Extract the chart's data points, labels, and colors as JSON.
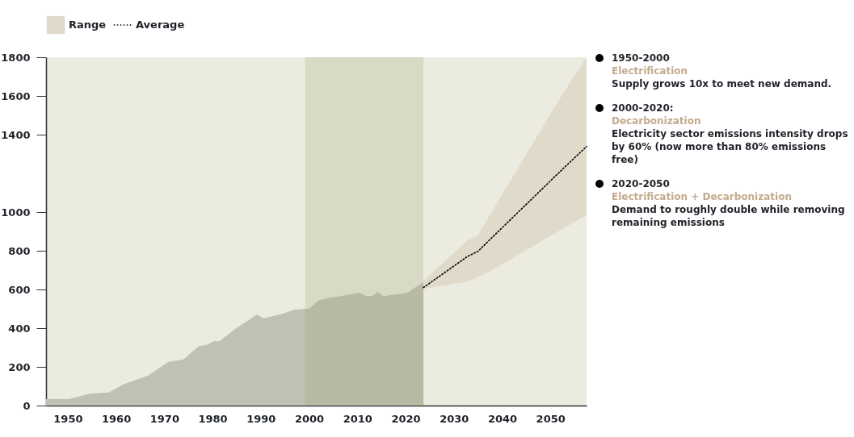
{
  "chart_data": {
    "type": "area",
    "xlim": [
      1945.5,
      2057.5
    ],
    "xticks": [
      1950,
      1960,
      1970,
      1980,
      1990,
      2000,
      2010,
      2020,
      2030,
      2040,
      2050
    ],
    "ylim": [
      0,
      1800
    ],
    "yticks": [
      0,
      200,
      400,
      600,
      800,
      1000,
      1400,
      1600,
      1800
    ],
    "legend": "top left",
    "line_style": "dotted",
    "series": [
      {
        "type": "area",
        "color": "#c0c0b3",
        "x": [
          1945.5,
          1950.2,
          1954.6,
          1958.5,
          1961.6,
          1966.6,
          1970.8,
          1973.9,
          1977.2,
          1978.6,
          1980.3,
          1981.4,
          1985,
          1989.2,
          1990.6,
          1995,
          1997,
          2000,
          2002,
          2004.5,
          2010.4,
          2012,
          2013.2,
          2014.2,
          2015.4,
          2017.9,
          2020.1,
          2021.8,
          2023.7
        ],
        "values": [
          33,
          33,
          61,
          68,
          110,
          154,
          225,
          238,
          307,
          312,
          332,
          332,
          401,
          471,
          450,
          478,
          496,
          501,
          544,
          557,
          582,
          565,
          568,
          589,
          565,
          575,
          579,
          607,
          638
        ]
      },
      {
        "name": "Average",
        "type": "line",
        "color": "#000000",
        "x": [
          2023.7,
          2032.8,
          2035,
          2037.4,
          2052.2,
          2057.5
        ],
        "values": [
          610,
          770,
          797,
          856,
          1214,
          1339
        ],
        "lower": [
          603,
          640,
          666,
          693,
          908,
          985
        ],
        "upper": [
          645,
          853,
          880,
          983,
          1596,
          1800
        ]
      }
    ],
    "bands": [
      {
        "axis": "x",
        "from": 1999.2,
        "to": 2023.7,
        "color": "#9fa27a"
      }
    ],
    "annotations": [
      "Range",
      "1950-2000\nElectrification\nSupply grows 10x to meet new demand.",
      "2000-2020:\nDecarbonization\nElectricity sector emissions intensity drops by 60% (now more than 80% emissions free)",
      "2020-2050\nElectrification + Decarbonization\nDemand to roughly double while removing remaining emissions"
    ]
  }
}
